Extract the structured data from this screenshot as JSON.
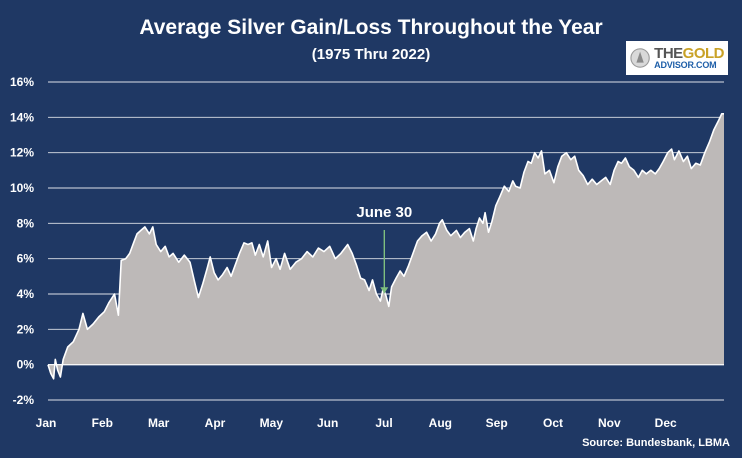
{
  "chart_data": {
    "type": "area",
    "title": "Average Silver Gain/Loss Throughout the Year",
    "subtitle": "(1975 Thru 2022)",
    "xlabel": "",
    "ylabel": "",
    "x_ticks": [
      "Jan",
      "Feb",
      "Mar",
      "Apr",
      "May",
      "Jun",
      "Jul",
      "Aug",
      "Sep",
      "Oct",
      "Nov",
      "Dec"
    ],
    "y_ticks": [
      "16%",
      "14%",
      "12%",
      "10%",
      "8%",
      "6%",
      "4%",
      "2%",
      "0%",
      "-2%"
    ],
    "ylim": [
      -2,
      16
    ],
    "x_unit": "month index (0 = Jan 1, 12 = Dec 31)",
    "xlim": [
      0,
      12
    ],
    "grid": "horizontal",
    "legend": "none",
    "fill_color": "#bdb9b8",
    "line_color": "#ffffff",
    "series": [
      {
        "points": [
          [
            0.0,
            0.0
          ],
          [
            0.05,
            -0.5
          ],
          [
            0.1,
            -0.8
          ],
          [
            0.13,
            0.3
          ],
          [
            0.17,
            -0.3
          ],
          [
            0.22,
            -0.7
          ],
          [
            0.27,
            0.3
          ],
          [
            0.35,
            1.0
          ],
          [
            0.45,
            1.3
          ],
          [
            0.55,
            2.0
          ],
          [
            0.62,
            2.9
          ],
          [
            0.7,
            2.0
          ],
          [
            0.8,
            2.3
          ],
          [
            0.9,
            2.7
          ],
          [
            1.0,
            3.0
          ],
          [
            1.08,
            3.5
          ],
          [
            1.18,
            4.0
          ],
          [
            1.25,
            2.8
          ],
          [
            1.3,
            5.9
          ],
          [
            1.38,
            6.0
          ],
          [
            1.45,
            6.3
          ],
          [
            1.52,
            6.9
          ],
          [
            1.58,
            7.4
          ],
          [
            1.65,
            7.6
          ],
          [
            1.72,
            7.8
          ],
          [
            1.8,
            7.4
          ],
          [
            1.86,
            7.8
          ],
          [
            1.92,
            6.8
          ],
          [
            2.0,
            6.4
          ],
          [
            2.08,
            6.7
          ],
          [
            2.15,
            6.1
          ],
          [
            2.22,
            6.3
          ],
          [
            2.32,
            5.8
          ],
          [
            2.42,
            6.2
          ],
          [
            2.52,
            5.8
          ],
          [
            2.6,
            4.7
          ],
          [
            2.67,
            3.8
          ],
          [
            2.75,
            4.6
          ],
          [
            2.82,
            5.4
          ],
          [
            2.88,
            6.1
          ],
          [
            2.95,
            5.2
          ],
          [
            3.02,
            4.8
          ],
          [
            3.1,
            5.1
          ],
          [
            3.18,
            5.5
          ],
          [
            3.25,
            5.0
          ],
          [
            3.32,
            5.6
          ],
          [
            3.4,
            6.3
          ],
          [
            3.48,
            6.9
          ],
          [
            3.55,
            6.8
          ],
          [
            3.62,
            6.9
          ],
          [
            3.68,
            6.2
          ],
          [
            3.75,
            6.8
          ],
          [
            3.82,
            6.1
          ],
          [
            3.9,
            7.0
          ],
          [
            3.97,
            5.5
          ],
          [
            4.05,
            6.0
          ],
          [
            4.12,
            5.4
          ],
          [
            4.2,
            6.3
          ],
          [
            4.3,
            5.4
          ],
          [
            4.4,
            5.8
          ],
          [
            4.5,
            6.0
          ],
          [
            4.6,
            6.4
          ],
          [
            4.7,
            6.1
          ],
          [
            4.8,
            6.6
          ],
          [
            4.9,
            6.4
          ],
          [
            5.0,
            6.7
          ],
          [
            5.1,
            6.0
          ],
          [
            5.2,
            6.3
          ],
          [
            5.32,
            6.8
          ],
          [
            5.4,
            6.3
          ],
          [
            5.48,
            5.6
          ],
          [
            5.55,
            4.9
          ],
          [
            5.62,
            4.8
          ],
          [
            5.7,
            4.2
          ],
          [
            5.76,
            4.8
          ],
          [
            5.83,
            4.0
          ],
          [
            5.9,
            3.6
          ],
          [
            5.95,
            4.3
          ],
          [
            6.0,
            3.9
          ],
          [
            6.05,
            3.3
          ],
          [
            6.1,
            4.4
          ],
          [
            6.18,
            4.9
          ],
          [
            6.25,
            5.3
          ],
          [
            6.32,
            5.0
          ],
          [
            6.4,
            5.6
          ],
          [
            6.48,
            6.3
          ],
          [
            6.56,
            7.0
          ],
          [
            6.64,
            7.3
          ],
          [
            6.72,
            7.5
          ],
          [
            6.8,
            7.0
          ],
          [
            6.88,
            7.4
          ],
          [
            6.95,
            8.0
          ],
          [
            7.0,
            8.2
          ],
          [
            7.08,
            7.6
          ],
          [
            7.15,
            7.3
          ],
          [
            7.25,
            7.6
          ],
          [
            7.32,
            7.2
          ],
          [
            7.4,
            7.5
          ],
          [
            7.48,
            7.7
          ],
          [
            7.55,
            7.0
          ],
          [
            7.6,
            7.7
          ],
          [
            7.66,
            8.3
          ],
          [
            7.72,
            8.0
          ],
          [
            7.76,
            8.6
          ],
          [
            7.82,
            7.5
          ],
          [
            7.88,
            8.1
          ],
          [
            7.95,
            9.0
          ],
          [
            8.02,
            9.5
          ],
          [
            8.1,
            10.1
          ],
          [
            8.18,
            9.8
          ],
          [
            8.25,
            10.4
          ],
          [
            8.3,
            10.1
          ],
          [
            8.38,
            10.0
          ],
          [
            8.45,
            10.9
          ],
          [
            8.52,
            11.5
          ],
          [
            8.58,
            11.4
          ],
          [
            8.64,
            12.0
          ],
          [
            8.7,
            11.7
          ],
          [
            8.76,
            12.1
          ],
          [
            8.82,
            10.8
          ],
          [
            8.9,
            11.0
          ],
          [
            8.98,
            10.3
          ],
          [
            9.05,
            11.2
          ],
          [
            9.12,
            11.8
          ],
          [
            9.2,
            12.0
          ],
          [
            9.28,
            11.6
          ],
          [
            9.35,
            11.8
          ],
          [
            9.42,
            11.0
          ],
          [
            9.5,
            10.7
          ],
          [
            9.58,
            10.2
          ],
          [
            9.66,
            10.5
          ],
          [
            9.74,
            10.2
          ],
          [
            9.82,
            10.4
          ],
          [
            9.9,
            10.6
          ],
          [
            9.98,
            10.2
          ],
          [
            10.05,
            11.0
          ],
          [
            10.12,
            11.5
          ],
          [
            10.18,
            11.4
          ],
          [
            10.25,
            11.7
          ],
          [
            10.32,
            11.2
          ],
          [
            10.4,
            11.0
          ],
          [
            10.48,
            10.6
          ],
          [
            10.55,
            11.0
          ],
          [
            10.62,
            10.8
          ],
          [
            10.7,
            11.0
          ],
          [
            10.78,
            10.8
          ],
          [
            10.85,
            11.1
          ],
          [
            10.92,
            11.5
          ],
          [
            11.0,
            12.0
          ],
          [
            11.07,
            12.2
          ],
          [
            11.12,
            11.6
          ],
          [
            11.2,
            12.1
          ],
          [
            11.28,
            11.5
          ],
          [
            11.35,
            11.8
          ],
          [
            11.42,
            11.1
          ],
          [
            11.5,
            11.4
          ],
          [
            11.58,
            11.3
          ],
          [
            11.66,
            12.0
          ],
          [
            11.74,
            12.6
          ],
          [
            11.82,
            13.3
          ],
          [
            11.9,
            13.8
          ],
          [
            11.96,
            14.2
          ],
          [
            12.0,
            14.2
          ]
        ]
      }
    ],
    "annotations": [
      {
        "text": "June 30",
        "x": 5.97,
        "y": 3.7
      }
    ]
  },
  "logo": {
    "line1_a": "THE",
    "line1_b": "GOLD",
    "line2": "ADVISOR.COM"
  },
  "source": "Source: Bundesbank, LBMA"
}
